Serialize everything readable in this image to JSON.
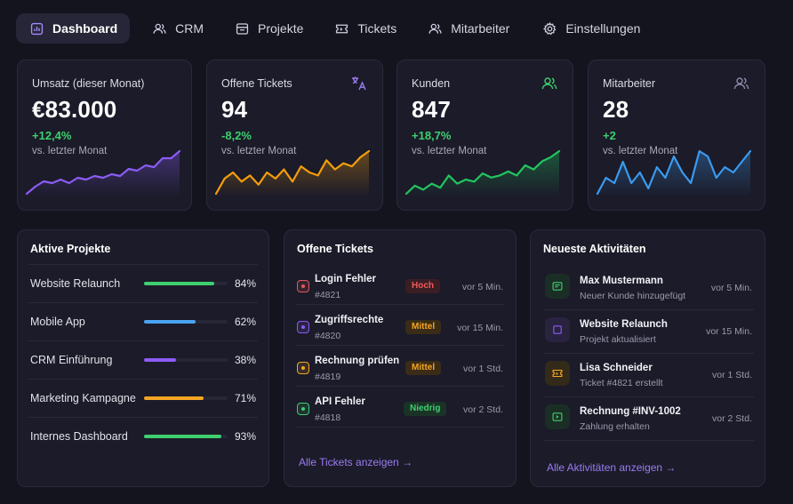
{
  "nav": {
    "items": [
      {
        "label": "Dashboard",
        "icon": "chart-bar-icon",
        "active": true
      },
      {
        "label": "CRM",
        "icon": "users-icon"
      },
      {
        "label": "Projekte",
        "icon": "folder-icon"
      },
      {
        "label": "Tickets",
        "icon": "ticket-icon"
      },
      {
        "label": "Mitarbeiter",
        "icon": "user-group-icon"
      },
      {
        "label": "Einstellungen",
        "icon": "gear-icon"
      }
    ]
  },
  "stats": [
    {
      "title": "Umsatz (dieser Monat)",
      "value": "€83.000",
      "delta": "+12,4%",
      "delta_color": "#3ecf6e",
      "sub": "vs. letzter Monat",
      "color": "#8b5cf6",
      "series": [
        2,
        6,
        9,
        8,
        10,
        8,
        11,
        10,
        12,
        11,
        13,
        12,
        16,
        15,
        18,
        17,
        22,
        22,
        26
      ]
    },
    {
      "title": "Offene Tickets",
      "value": "94",
      "delta": "-8,2%",
      "delta_color": "#3ecf6e",
      "sub": "vs. letzter Monat",
      "color": "#f59e0b",
      "icon": "translate-icon",
      "series": [
        3,
        8,
        10,
        7,
        9,
        6,
        10,
        8,
        11,
        7,
        12,
        10,
        9,
        14,
        11,
        13,
        12,
        15,
        17
      ]
    },
    {
      "title": "Kunden",
      "value": "847",
      "delta": "+18,7%",
      "delta_color": "#3ecf6e",
      "sub": "vs. letzter Monat",
      "color": "#22c55e",
      "icon": "users-icon",
      "series": [
        4,
        8,
        6,
        9,
        7,
        13,
        9,
        11,
        10,
        14,
        12,
        13,
        15,
        13,
        18,
        16,
        20,
        22,
        25
      ]
    },
    {
      "title": "Mitarbeiter",
      "value": "28",
      "delta": "+2",
      "delta_color": "#3ecf6e",
      "sub": "vs. letzter Monat",
      "color": "#3b9bf0",
      "icon": "users-icon",
      "series": [
        6,
        9,
        8,
        12,
        8,
        10,
        7,
        11,
        9,
        13,
        10,
        8,
        14,
        13,
        9,
        11,
        10,
        12,
        14
      ]
    }
  ],
  "projects": {
    "title": "Aktive Projekte",
    "items": [
      {
        "name": "Website Relaunch",
        "pct": "84%",
        "value": 84,
        "color": "#3ecf6e"
      },
      {
        "name": "Mobile App",
        "pct": "62%",
        "value": 62,
        "color": "#4aa3f0"
      },
      {
        "name": "CRM Einführung",
        "pct": "38%",
        "value": 38,
        "color": "#8b5cf6"
      },
      {
        "name": "Marketing Kampagne",
        "pct": "71%",
        "value": 71,
        "color": "#f5a623"
      },
      {
        "name": "Internes Dashboard",
        "pct": "93%",
        "value": 93,
        "color": "#3ecf6e"
      }
    ]
  },
  "tickets": {
    "title": "Offene Tickets",
    "items": [
      {
        "name": "Login Fehler",
        "id": "#4821",
        "badge": "Hoch",
        "badge_color": "#f05a5a",
        "badge_bg": "#3a1e24",
        "time": "vor 5 Min.",
        "icon_color": "#e05a5a"
      },
      {
        "name": "Zugriffsrechte",
        "id": "#4820",
        "badge": "Mittel",
        "badge_color": "#f5a623",
        "badge_bg": "#3a2c17",
        "time": "vor 15 Min.",
        "icon_color": "#8b5cf6"
      },
      {
        "name": "Rechnung prüfen",
        "id": "#4819",
        "badge": "Mittel",
        "badge_color": "#f5a623",
        "badge_bg": "#3a2c17",
        "time": "vor 1 Std.",
        "icon_color": "#f5a623"
      },
      {
        "name": "API Fehler",
        "id": "#4818",
        "badge": "Niedrig",
        "badge_color": "#3ecf6e",
        "badge_bg": "#1a3326",
        "time": "vor 2 Std.",
        "icon_color": "#3ecf6e"
      }
    ],
    "link": "Alle Tickets anzeigen →"
  },
  "activities": {
    "title": "Neueste Aktivitäten",
    "items": [
      {
        "name": "Max Mustermann",
        "sub": "Neuer Kunde hinzugefügt",
        "time": "vor 5 Min.",
        "icon": "id-card-icon",
        "icon_color": "#3ecf6e",
        "icon_bg": "#1b2e25"
      },
      {
        "name": "Website Relaunch",
        "sub": "Projekt aktualisiert",
        "time": "vor 15 Min.",
        "icon": "square-icon",
        "icon_color": "#8b5cf6",
        "icon_bg": "#2a2340"
      },
      {
        "name": "Lisa Schneider",
        "sub": "Ticket #4821 erstellt",
        "time": "vor 1 Std.",
        "icon": "ticket-icon",
        "icon_color": "#f5a623",
        "icon_bg": "#332a1a"
      },
      {
        "name": "Rechnung #INV-1002",
        "sub": "Zahlung erhalten",
        "time": "vor 2 Std.",
        "icon": "payment-icon",
        "icon_color": "#3ecf6e",
        "icon_bg": "#1b2e25"
      }
    ],
    "link": "Alle Aktivitäten anzeigen →"
  }
}
